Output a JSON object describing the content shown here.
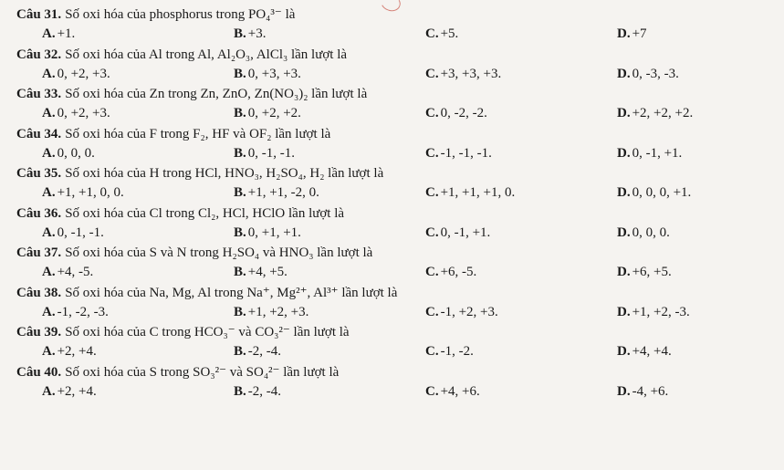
{
  "questions": [
    {
      "num": "Câu 31.",
      "text": "Số oxi hóa của phosphorus trong PO₄³⁻ là",
      "opts": {
        "A": "+1.",
        "B": "+3.",
        "C": "+5.",
        "D": "+7"
      }
    },
    {
      "num": "Câu 32.",
      "text": "Số oxi hóa của Al trong Al, Al₂O₃, AlCl₃ lần lượt là",
      "opts": {
        "A": "0, +2, +3.",
        "B": "0, +3, +3.",
        "C": "+3, +3, +3.",
        "D": "0, -3, -3."
      }
    },
    {
      "num": "Câu 33.",
      "text": "Số oxi hóa của Zn trong Zn, ZnO, Zn(NO₃)₂ lần lượt là",
      "opts": {
        "A": "0, +2, +3.",
        "B": "0, +2, +2.",
        "C": "0, -2, -2.",
        "D": "+2, +2, +2."
      }
    },
    {
      "num": "Câu 34.",
      "text": "Số oxi hóa của F trong F₂, HF và OF₂ lần lượt là",
      "opts": {
        "A": "0, 0, 0.",
        "B": "0, -1, -1.",
        "C": "-1, -1, -1.",
        "D": "0, -1, +1."
      }
    },
    {
      "num": "Câu 35.",
      "text": "Số oxi hóa của H trong HCl, HNO₃, H₂SO₄, H₂ lần lượt là",
      "opts": {
        "A": "+1, +1, 0, 0.",
        "B": "+1, +1, -2, 0.",
        "C": "+1, +1, +1, 0.",
        "D": "0, 0, 0, +1."
      }
    },
    {
      "num": "Câu 36.",
      "text": "Số oxi hóa của Cl trong Cl₂, HCl, HClO lần lượt là",
      "opts": {
        "A": "0, -1, -1.",
        "B": "0, +1, +1.",
        "C": "0, -1, +1.",
        "D": "0, 0, 0."
      }
    },
    {
      "num": "Câu 37.",
      "text": "Số oxi hóa của S và N trong H₂SO₄ và HNO₃ lần lượt là",
      "opts": {
        "A": "+4, -5.",
        "B": "+4, +5.",
        "C": "+6, -5.",
        "D": "+6, +5."
      }
    },
    {
      "num": "Câu 38.",
      "text": "Số oxi hóa của Na, Mg, Al trong Na⁺, Mg²⁺, Al³⁺ lần lượt là",
      "opts": {
        "A": "-1, -2, -3.",
        "B": "+1, +2, +3.",
        "C": "-1, +2, +3.",
        "D": "+1, +2, -3."
      }
    },
    {
      "num": "Câu 39.",
      "text": "Số oxi hóa của C trong HCO₃⁻ và CO₃²⁻ lần lượt là",
      "opts": {
        "A": "+2, +4.",
        "B": "-2, -4.",
        "C": "-1, -2.",
        "D": "+4, +4."
      }
    },
    {
      "num": "Câu 40.",
      "text": "Số oxi hóa của S trong SO₃²⁻ và SO₄²⁻ lần lượt là",
      "opts": {
        "A": "+2, +4.",
        "B": "-2, -4.",
        "C": "+4, +6.",
        "D": "-4, +6."
      }
    }
  ]
}
